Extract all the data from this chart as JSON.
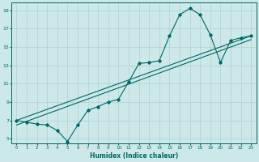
{
  "xlabel": "Humidex (Indice chaleur)",
  "bg_color": "#cce8e8",
  "grid_color": "#b0d0d0",
  "line_color": "#006666",
  "xlim": [
    -0.5,
    23.5
  ],
  "ylim": [
    4.5,
    19.8
  ],
  "xticks": [
    0,
    1,
    2,
    3,
    4,
    5,
    6,
    7,
    8,
    9,
    10,
    11,
    12,
    13,
    14,
    15,
    16,
    17,
    18,
    19,
    20,
    21,
    22,
    23
  ],
  "yticks": [
    5,
    7,
    9,
    11,
    13,
    15,
    17,
    19
  ],
  "line1_x": [
    0,
    1,
    2,
    3,
    4,
    5,
    6,
    7,
    8,
    9,
    10,
    11,
    12,
    13,
    14,
    15,
    16,
    17,
    18,
    19,
    20,
    21,
    22,
    23
  ],
  "line1_y": [
    7.0,
    6.8,
    6.6,
    6.5,
    5.9,
    4.7,
    6.5,
    8.1,
    8.5,
    9.0,
    9.3,
    11.2,
    13.2,
    13.3,
    13.5,
    16.2,
    18.5,
    19.2,
    18.5,
    16.3,
    13.3,
    15.7,
    16.0,
    16.2
  ],
  "line2_x": [
    0,
    23
  ],
  "line2_y": [
    7.0,
    16.2
  ],
  "line3_x": [
    0,
    23
  ],
  "line3_y": [
    6.5,
    15.8
  ]
}
